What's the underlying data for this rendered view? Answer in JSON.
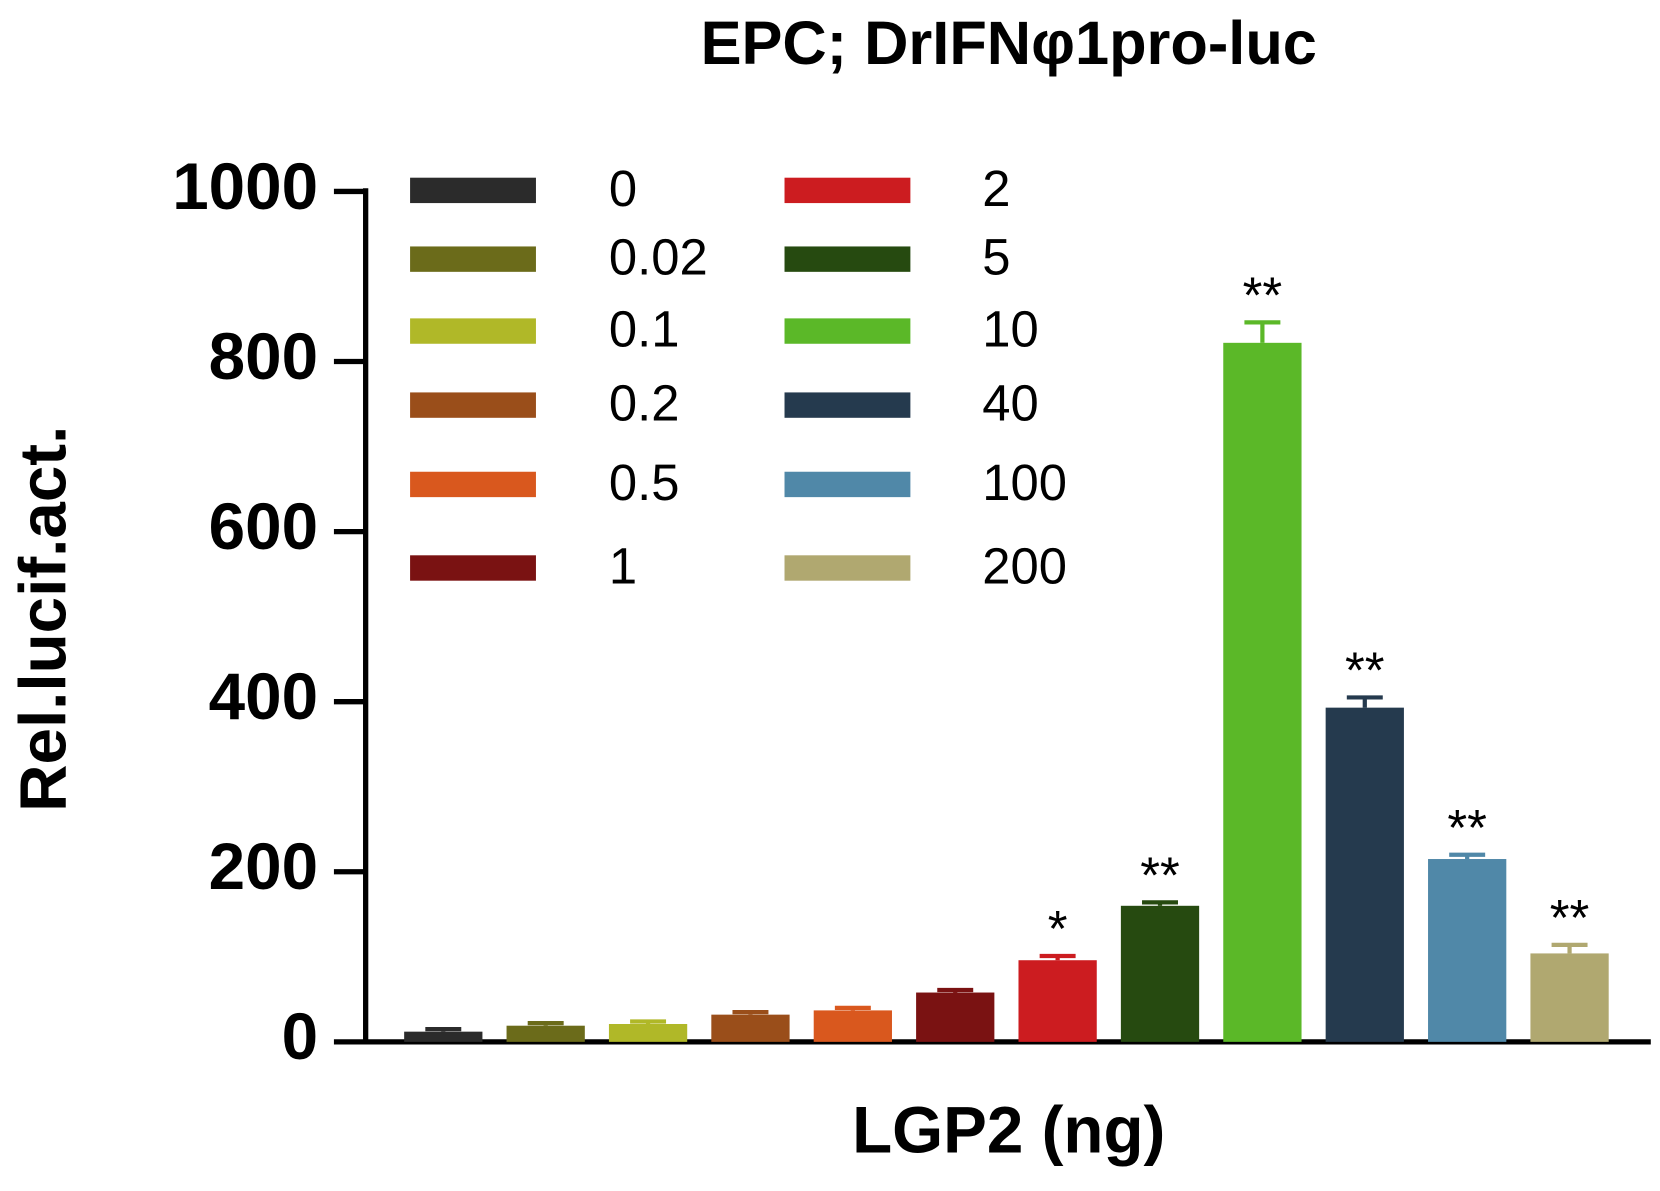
{
  "chart_data": {
    "type": "bar",
    "title": "EPC; DrIFNφ1pro-luc",
    "x_label": "LGP2 (ng)",
    "y_label": "Rel.lucif.act.",
    "categories": [
      "0",
      "0.02",
      "0.1",
      "0.2",
      "0.5",
      "1",
      "2",
      "5",
      "10",
      "40",
      "100",
      "200"
    ],
    "values": [
      12,
      19,
      21,
      32,
      37,
      58,
      96,
      160,
      822,
      393,
      215,
      104
    ],
    "errors": [
      3,
      3,
      3,
      3,
      3,
      3,
      5,
      4,
      24,
      12,
      5,
      10
    ],
    "annotations": [
      null,
      null,
      null,
      null,
      null,
      null,
      "*",
      "**",
      "**",
      "**",
      "**",
      "**"
    ],
    "colors": [
      "#2b2b2b",
      "#6b6b1a",
      "#b0b828",
      "#9a4e1a",
      "#d9581e",
      "#7a1212",
      "#cc1c20",
      "#264a10",
      "#5bb828",
      "#253a4e",
      "#5088a8",
      "#b0a870"
    ],
    "ylim": [
      0,
      1000
    ],
    "yticks": [
      0,
      200,
      400,
      600,
      800,
      1000
    ]
  }
}
